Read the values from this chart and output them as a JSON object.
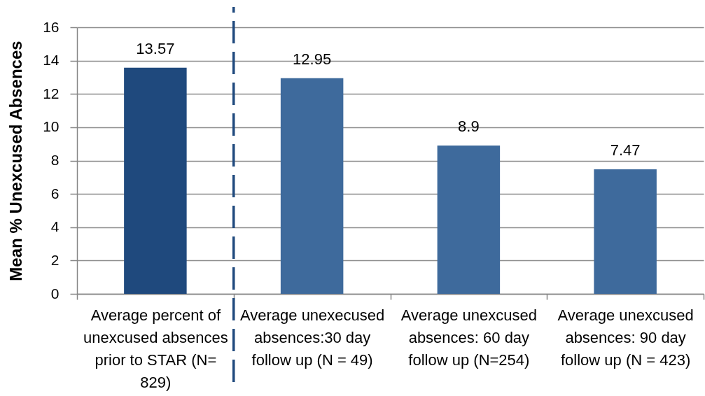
{
  "chart_data": {
    "type": "bar",
    "ylabel": "Mean % Unexcused Absences",
    "categories": [
      "Average percent of unexcused absences prior to STAR (N= 829)",
      "Average unexecused absences:30 day follow up (N = 49)",
      "Average unexcused absences: 60 day follow up (N=254)",
      "Average unexcused absences: 90 day follow up (N = 423)"
    ],
    "values": [
      13.57,
      12.95,
      8.9,
      7.47
    ],
    "colors": [
      "#1f497d",
      "#3e6a9c",
      "#3e6a9c",
      "#3e6a9c"
    ],
    "ylim": [
      0,
      16
    ],
    "yticks": [
      0,
      2,
      4,
      6,
      8,
      10,
      12,
      14,
      16
    ],
    "grid": "y",
    "data_labels": true
  }
}
